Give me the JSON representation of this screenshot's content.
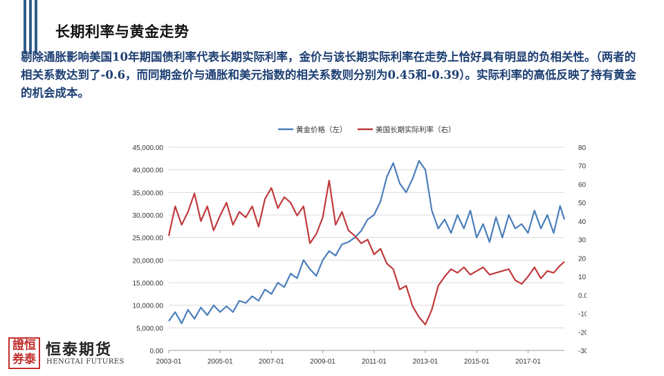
{
  "slide": {
    "title": "长期利率与黄金走势",
    "body": "剔除通胀影响美国10年期国债利率代表长期实际利率，金价与该长期实际利率在走势上恰好具有明显的负相关性。（两者的相关系数达到了-0.6，而同期金价与通胀和美元指数的相关系数则分别为0.45和-0.39）。实际利率的高低反映了持有黄金的机会成本。"
  },
  "logo": {
    "seal_text": "證恒券泰",
    "name_cn": "恒泰期货",
    "name_en": "HENGTAI FUTURES"
  },
  "colors": {
    "accent": "#2f5d8a",
    "gold": "#4a7ebb",
    "rate": "#c0393b",
    "body_text": "#1d3f73"
  },
  "chart_data": {
    "type": "line",
    "title": "",
    "x_tick_labels": [
      "2003-01",
      "2005-01",
      "2007-01",
      "2009-01",
      "2011-01",
      "2013-01",
      "2015-01",
      "2017-01"
    ],
    "x_range": [
      "2003-01",
      "2018-06"
    ],
    "y_left": {
      "ylim": [
        0,
        45000
      ],
      "ticks": [
        "0.00",
        "5,000.00",
        "10,000.00",
        "15,000.00",
        "20,000.00",
        "25,000.00",
        "30,000.00",
        "35,000.00",
        "40,000.00",
        "45,000.00"
      ]
    },
    "y_right": {
      "ylim": [
        -30,
        80
      ],
      "ticks": [
        "-30.00",
        "-20.00",
        "-10.00",
        "0.00",
        "10.00",
        "20.00",
        "30.00",
        "40.00",
        "50.00",
        "60.00",
        "70.00",
        "80.00"
      ]
    },
    "legend_placement": "top",
    "grid": "horizontal",
    "series": [
      {
        "name": "黄金价格（左）",
        "axis": "left",
        "color": "#4a7ebb",
        "x": [
          "2003-01",
          "2003-04",
          "2003-07",
          "2003-10",
          "2004-01",
          "2004-04",
          "2004-07",
          "2004-10",
          "2005-01",
          "2005-04",
          "2005-07",
          "2005-10",
          "2006-01",
          "2006-04",
          "2006-07",
          "2006-10",
          "2007-01",
          "2007-04",
          "2007-07",
          "2007-10",
          "2008-01",
          "2008-04",
          "2008-07",
          "2008-10",
          "2009-01",
          "2009-04",
          "2009-07",
          "2009-10",
          "2010-01",
          "2010-04",
          "2010-07",
          "2010-10",
          "2011-01",
          "2011-04",
          "2011-07",
          "2011-10",
          "2012-01",
          "2012-04",
          "2012-07",
          "2012-10",
          "2013-01",
          "2013-04",
          "2013-07",
          "2013-10",
          "2014-01",
          "2014-04",
          "2014-07",
          "2014-10",
          "2015-01",
          "2015-04",
          "2015-07",
          "2015-10",
          "2016-01",
          "2016-04",
          "2016-07",
          "2016-10",
          "2017-01",
          "2017-04",
          "2017-07",
          "2017-10",
          "2018-01",
          "2018-04",
          "2018-06"
        ],
        "values": [
          6500,
          8500,
          6000,
          9000,
          7000,
          9500,
          7800,
          10000,
          8500,
          9800,
          8500,
          11000,
          10500,
          12000,
          11000,
          13500,
          12500,
          15000,
          14000,
          17000,
          16000,
          20000,
          18000,
          16500,
          20000,
          22000,
          21000,
          23500,
          24000,
          25000,
          26500,
          29000,
          30000,
          33000,
          38500,
          41500,
          37000,
          35000,
          38000,
          42000,
          40000,
          31000,
          27000,
          29000,
          26000,
          30000,
          27000,
          31000,
          25000,
          28000,
          24000,
          29500,
          25000,
          30000,
          27000,
          28000,
          26000,
          31000,
          27000,
          30000,
          26000,
          32000,
          29000
        ]
      },
      {
        "name": "美国长期实际利率（右）",
        "axis": "right",
        "color": "#c0393b",
        "x": [
          "2003-01",
          "2003-04",
          "2003-07",
          "2003-10",
          "2004-01",
          "2004-04",
          "2004-07",
          "2004-10",
          "2005-01",
          "2005-04",
          "2005-07",
          "2005-10",
          "2006-01",
          "2006-04",
          "2006-07",
          "2006-10",
          "2007-01",
          "2007-04",
          "2007-07",
          "2007-10",
          "2008-01",
          "2008-04",
          "2008-07",
          "2008-10",
          "2009-01",
          "2009-04",
          "2009-07",
          "2009-10",
          "2010-01",
          "2010-04",
          "2010-07",
          "2010-10",
          "2011-01",
          "2011-04",
          "2011-07",
          "2011-10",
          "2012-01",
          "2012-04",
          "2012-07",
          "2012-10",
          "2013-01",
          "2013-04",
          "2013-07",
          "2013-10",
          "2014-01",
          "2014-04",
          "2014-07",
          "2014-10",
          "2015-01",
          "2015-04",
          "2015-07",
          "2015-10",
          "2016-01",
          "2016-04",
          "2016-07",
          "2016-10",
          "2017-01",
          "2017-04",
          "2017-07",
          "2017-10",
          "2018-01",
          "2018-04",
          "2018-06"
        ],
        "values": [
          32,
          48,
          38,
          45,
          55,
          40,
          48,
          35,
          43,
          50,
          38,
          45,
          42,
          48,
          37,
          52,
          58,
          47,
          53,
          50,
          43,
          48,
          28,
          33,
          42,
          62,
          38,
          45,
          35,
          32,
          28,
          30,
          22,
          25,
          17,
          14,
          3,
          5,
          -6,
          -12,
          -16,
          -8,
          5,
          10,
          14,
          12,
          15,
          11,
          13,
          15,
          11,
          12,
          13,
          14,
          8,
          6,
          10,
          15,
          9,
          13,
          12,
          16,
          18
        ]
      }
    ]
  }
}
